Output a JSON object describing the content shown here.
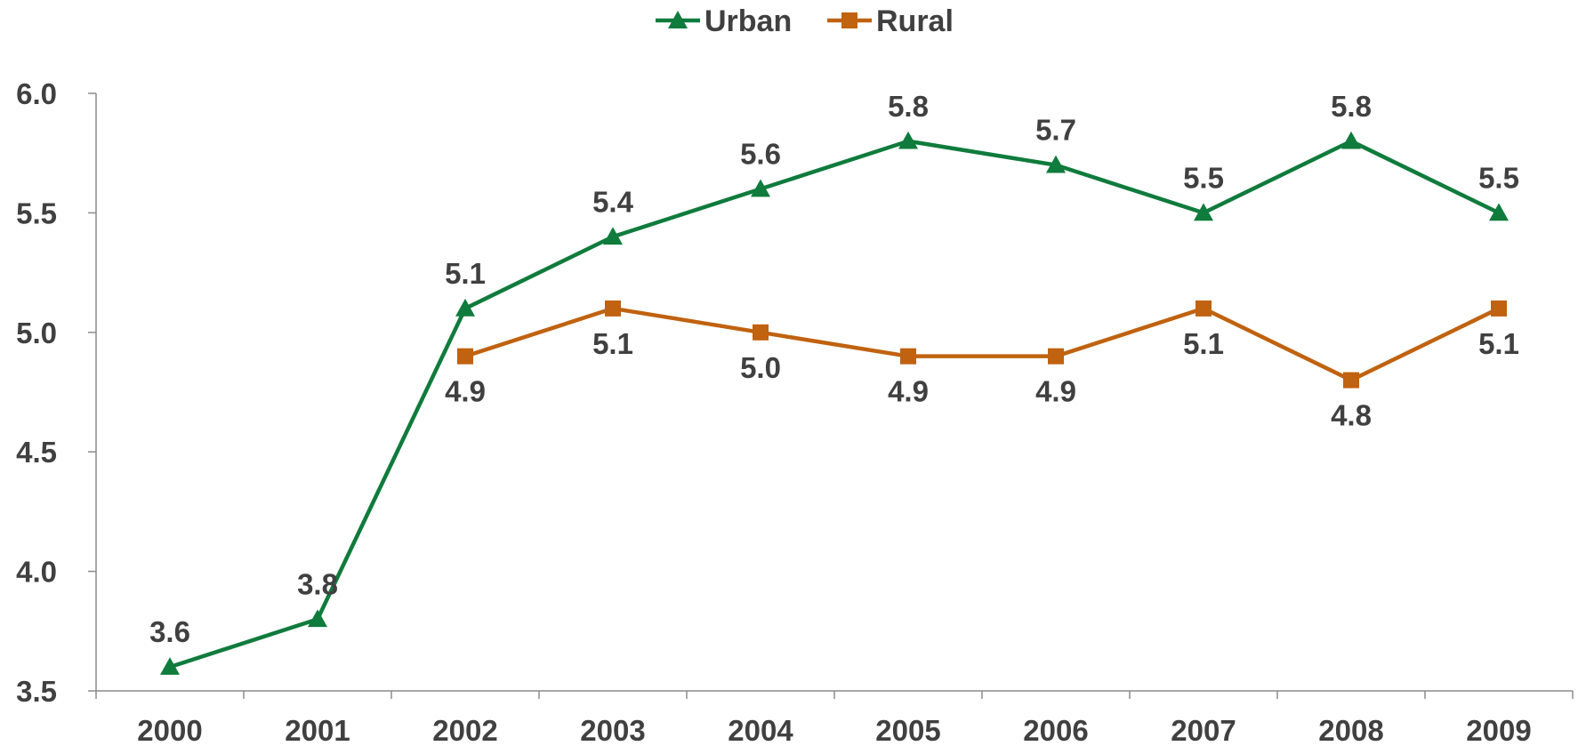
{
  "chart_data": {
    "type": "line",
    "title": "",
    "xlabel": "",
    "ylabel": "",
    "categories": [
      "2000",
      "2001",
      "2002",
      "2003",
      "2004",
      "2005",
      "2006",
      "2007",
      "2008",
      "2009"
    ],
    "ylim": [
      3.5,
      6.0
    ],
    "yticks": [
      "3.5",
      "4.0",
      "4.5",
      "5.0",
      "5.5",
      "6.0"
    ],
    "grid": false,
    "legend_position": "top-center",
    "series": [
      {
        "name": "Urban",
        "marker": "triangle",
        "color": "#0F7B3C",
        "values": [
          3.6,
          3.8,
          5.1,
          5.4,
          5.6,
          5.8,
          5.7,
          5.5,
          5.8,
          5.5
        ],
        "labels": [
          "3.6",
          "3.8",
          "5.1",
          "5.4",
          "5.6",
          "5.8",
          "5.7",
          "5.5",
          "5.8",
          "5.5"
        ],
        "label_side": "above"
      },
      {
        "name": "Rural",
        "marker": "square",
        "color": "#C0620F",
        "values": [
          null,
          null,
          4.9,
          5.1,
          5.0,
          4.9,
          4.9,
          5.1,
          4.8,
          5.1
        ],
        "labels": [
          null,
          null,
          "4.9",
          "5.1",
          "5.0",
          "4.9",
          "4.9",
          "5.1",
          "4.8",
          "5.1"
        ],
        "label_side": "below"
      }
    ]
  }
}
